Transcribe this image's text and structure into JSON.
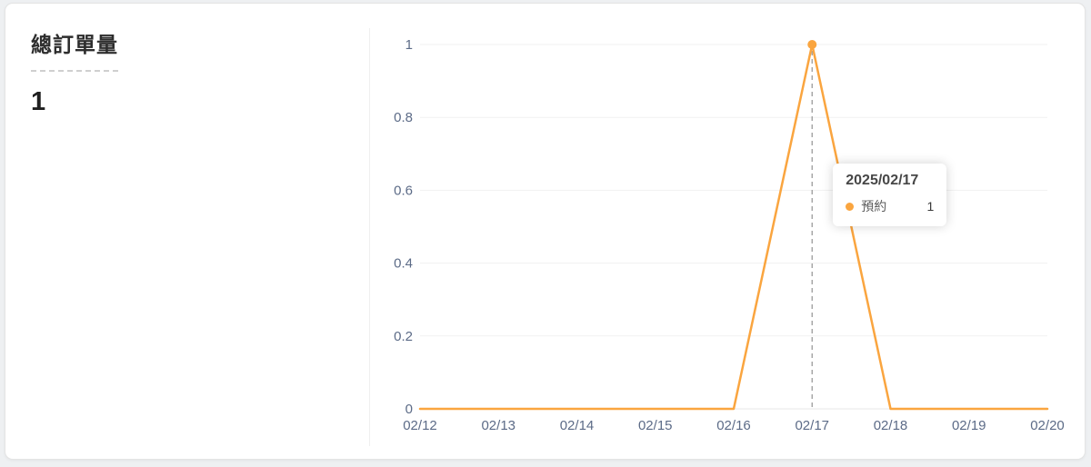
{
  "card": {
    "title": "總訂單量",
    "total_count": "1"
  },
  "colors": {
    "line": "#faa53f",
    "axis_label": "#5c6b87",
    "gridline": "#f1f1f1",
    "zero_line": "#e7e7e7",
    "crosshair": "#9b9b9b",
    "card_border": "#e4e4e4",
    "page_bg": "#eef0f2"
  },
  "chart_data": {
    "type": "line",
    "categories": [
      "02/12",
      "02/13",
      "02/14",
      "02/15",
      "02/16",
      "02/17",
      "02/18",
      "02/19",
      "02/20"
    ],
    "series": [
      {
        "name": "預約",
        "color": "#faa53f",
        "values": [
          0,
          0,
          0,
          0,
          0,
          1,
          0,
          0,
          0
        ]
      }
    ],
    "title": "總訂單量",
    "xlabel": "",
    "ylabel": "",
    "ylim": [
      0,
      1
    ],
    "yticks": [
      0,
      0.2,
      0.4,
      0.6,
      0.8,
      1
    ],
    "grid": true,
    "legend_position": "none",
    "highlight": {
      "category_index": 5,
      "value": 1
    }
  },
  "tooltip": {
    "title": "2025/02/17",
    "series_label": "預約",
    "value": "1",
    "dot_color": "#faa53f"
  }
}
